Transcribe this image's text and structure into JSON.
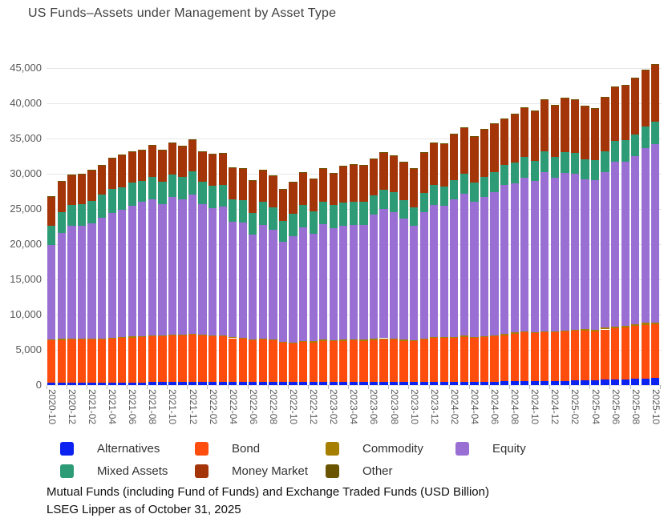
{
  "title": "US Funds–Assets under Management by Asset Type",
  "footnotes": {
    "line1": "Mutual Funds (including Fund of Funds) and Exchange Traded Funds (USD Billion)",
    "line2": "LSEG Lipper as of October 31, 2025"
  },
  "chart_data": {
    "type": "bar",
    "stacked": true,
    "title": "US Funds–Assets under Management by Asset Type",
    "xlabel": "",
    "ylabel": "",
    "unit": "USD Billion",
    "ylim": [
      0,
      45000
    ],
    "ytick_step": 5000,
    "grid": true,
    "legend_position": "bottom",
    "x_tick_every": 2,
    "x": [
      "2020-10",
      "2020-11",
      "2020-12",
      "2021-01",
      "2021-02",
      "2021-03",
      "2021-04",
      "2021-05",
      "2021-06",
      "2021-07",
      "2021-08",
      "2021-09",
      "2021-10",
      "2021-11",
      "2021-12",
      "2022-01",
      "2022-02",
      "2022-03",
      "2022-04",
      "2022-05",
      "2022-06",
      "2022-07",
      "2022-08",
      "2022-09",
      "2022-10",
      "2022-11",
      "2022-12",
      "2023-01",
      "2023-02",
      "2023-03",
      "2023-04",
      "2023-05",
      "2023-06",
      "2023-07",
      "2023-08",
      "2023-09",
      "2023-10",
      "2023-11",
      "2023-12",
      "2024-01",
      "2024-02",
      "2024-03",
      "2024-04",
      "2024-05",
      "2024-06",
      "2024-07",
      "2024-08",
      "2024-09",
      "2024-10",
      "2024-11",
      "2024-12",
      "2025-01",
      "2025-02",
      "2025-03",
      "2025-04",
      "2025-05",
      "2025-06",
      "2025-07",
      "2025-08",
      "2025-09",
      "2025-10"
    ],
    "series": [
      {
        "name": "Alternatives",
        "color": "#0b22f0",
        "values": [
          350,
          350,
          360,
          360,
          370,
          370,
          380,
          380,
          390,
          390,
          400,
          400,
          410,
          410,
          420,
          430,
          430,
          440,
          440,
          440,
          440,
          450,
          450,
          450,
          450,
          450,
          450,
          450,
          450,
          450,
          450,
          450,
          460,
          460,
          460,
          460,
          460,
          460,
          470,
          470,
          480,
          480,
          490,
          490,
          500,
          520,
          540,
          560,
          570,
          590,
          600,
          620,
          650,
          680,
          700,
          750,
          800,
          850,
          900,
          950,
          1000
        ]
      },
      {
        "name": "Bond",
        "color": "#ff4d0d",
        "values": [
          5980,
          6050,
          6120,
          6120,
          6080,
          6100,
          6170,
          6270,
          6360,
          6460,
          6500,
          6550,
          6590,
          6640,
          6730,
          6620,
          6470,
          6460,
          6210,
          6160,
          5910,
          6000,
          5900,
          5550,
          5450,
          5650,
          5600,
          5850,
          5750,
          5850,
          5900,
          5850,
          5940,
          6040,
          5990,
          5840,
          5740,
          5990,
          6230,
          6230,
          6220,
          6370,
          6210,
          6310,
          6400,
          6580,
          6760,
          6890,
          6780,
          6910,
          6900,
          6980,
          7050,
          7070,
          6950,
          7150,
          7300,
          7330,
          7470,
          7610,
          7640
        ]
      },
      {
        "name": "Commodity",
        "color": "#a67f00",
        "values": [
          140,
          140,
          140,
          140,
          140,
          140,
          140,
          140,
          140,
          140,
          140,
          140,
          140,
          140,
          140,
          150,
          150,
          150,
          150,
          150,
          150,
          150,
          150,
          150,
          150,
          150,
          150,
          150,
          150,
          150,
          150,
          150,
          150,
          150,
          150,
          150,
          150,
          150,
          150,
          150,
          160,
          160,
          160,
          160,
          160,
          170,
          170,
          170,
          170,
          170,
          170,
          180,
          190,
          200,
          220,
          230,
          240,
          250,
          260,
          270,
          280
        ]
      },
      {
        "name": "Equity",
        "color": "#9a6fd4",
        "values": [
          13420,
          15090,
          16030,
          15960,
          16370,
          17180,
          17780,
          18130,
          18530,
          19000,
          19320,
          18610,
          19560,
          19210,
          19810,
          18500,
          18100,
          18250,
          16350,
          16280,
          14860,
          16170,
          15510,
          14160,
          15130,
          16140,
          15320,
          16430,
          15920,
          16200,
          16270,
          16320,
          17650,
          18350,
          17980,
          17190,
          16230,
          17950,
          18760,
          18570,
          19510,
          20190,
          19130,
          19780,
          20330,
          21090,
          21170,
          21780,
          21420,
          22560,
          21800,
          22370,
          22080,
          21250,
          21220,
          22100,
          23420,
          23310,
          23870,
          24810,
          25290
        ]
      },
      {
        "name": "Mixed Assets",
        "color": "#2e9b77",
        "values": [
          2730,
          2950,
          2950,
          3100,
          3210,
          3220,
          3340,
          3150,
          3300,
          3030,
          3230,
          3200,
          3150,
          3100,
          3200,
          3200,
          3110,
          3150,
          3220,
          3260,
          3040,
          3220,
          3220,
          2950,
          3110,
          3220,
          3140,
          3180,
          3270,
          3260,
          3290,
          3220,
          2700,
          2750,
          2760,
          2650,
          2600,
          2700,
          2850,
          2800,
          2750,
          2850,
          2750,
          2800,
          2850,
          2850,
          2900,
          2950,
          2900,
          2950,
          2900,
          2950,
          2980,
          2900,
          2850,
          2900,
          2950,
          3000,
          3050,
          3100,
          3150
        ]
      },
      {
        "name": "Money Market",
        "color": "#a33508",
        "values": [
          4130,
          4330,
          4260,
          4250,
          4330,
          4250,
          4400,
          4590,
          4430,
          4400,
          4430,
          4520,
          4520,
          4420,
          4570,
          4250,
          4520,
          4510,
          4510,
          4510,
          4660,
          4590,
          4510,
          4510,
          4580,
          4630,
          4630,
          4710,
          4580,
          5160,
          5280,
          5190,
          5230,
          5290,
          5240,
          5420,
          5620,
          5790,
          5910,
          6070,
          6570,
          6460,
          6610,
          6830,
          6890,
          6570,
          6990,
          7050,
          7070,
          7360,
          7410,
          7630,
          7590,
          7570,
          7350,
          7790,
          7610,
          7810,
          8020,
          7970,
          8190
        ]
      },
      {
        "name": "Other",
        "color": "#6b5400",
        "values": [
          30,
          30,
          30,
          30,
          30,
          30,
          30,
          30,
          30,
          30,
          30,
          30,
          30,
          30,
          30,
          30,
          30,
          30,
          30,
          30,
          30,
          30,
          30,
          30,
          30,
          30,
          30,
          30,
          30,
          30,
          30,
          30,
          30,
          30,
          30,
          30,
          30,
          30,
          30,
          30,
          30,
          30,
          30,
          30,
          30,
          30,
          30,
          30,
          30,
          30,
          30,
          30,
          30,
          30,
          30,
          30,
          30,
          30,
          30,
          30,
          30
        ]
      }
    ]
  }
}
